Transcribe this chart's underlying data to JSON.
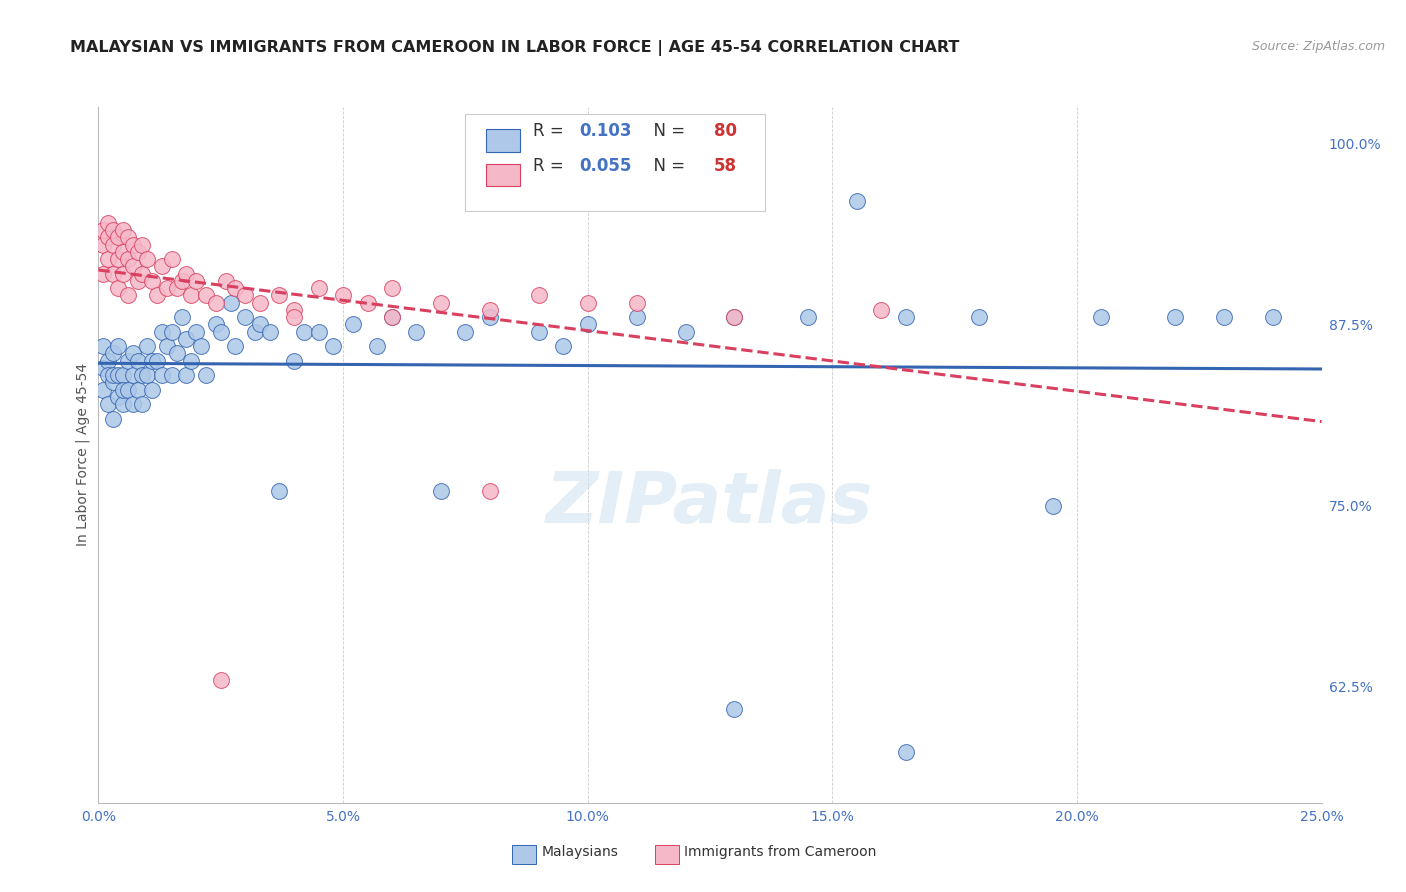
{
  "title": "MALAYSIAN VS IMMIGRANTS FROM CAMEROON IN LABOR FORCE | AGE 45-54 CORRELATION CHART",
  "source": "Source: ZipAtlas.com",
  "ylabel": "In Labor Force | Age 45-54",
  "r_malaysian": 0.103,
  "n_malaysian": 80,
  "r_cameroon": 0.055,
  "n_cameroon": 58,
  "color_malaysian": "#adc8e8",
  "color_cameroon": "#f5b8c8",
  "line_color_malaysian": "#3565b0",
  "line_color_cameroon": "#d94060",
  "background_color": "#ffffff",
  "grid_color": "#c8c8c8",
  "xlim": [
    0.0,
    0.25
  ],
  "ylim": [
    0.545,
    1.025
  ],
  "ytick_labels": [
    "62.5%",
    "75.0%",
    "87.5%",
    "100.0%"
  ],
  "ytick_values": [
    0.625,
    0.75,
    0.875,
    1.0
  ],
  "xtick_labels": [
    "0.0%",
    "5.0%",
    "10.0%",
    "15.0%",
    "20.0%",
    "25.0%"
  ],
  "xtick_values": [
    0.0,
    0.05,
    0.1,
    0.15,
    0.2,
    0.25
  ],
  "watermark": "ZIPatlas",
  "malaysian_x": [
    0.001,
    0.001,
    0.001,
    0.002,
    0.002,
    0.002,
    0.003,
    0.003,
    0.003,
    0.003,
    0.004,
    0.004,
    0.004,
    0.005,
    0.005,
    0.005,
    0.006,
    0.006,
    0.007,
    0.007,
    0.007,
    0.008,
    0.008,
    0.009,
    0.009,
    0.01,
    0.01,
    0.011,
    0.011,
    0.012,
    0.013,
    0.013,
    0.014,
    0.015,
    0.015,
    0.016,
    0.017,
    0.018,
    0.018,
    0.019,
    0.02,
    0.021,
    0.022,
    0.024,
    0.025,
    0.027,
    0.028,
    0.03,
    0.032,
    0.033,
    0.035,
    0.037,
    0.04,
    0.042,
    0.045,
    0.048,
    0.052,
    0.057,
    0.06,
    0.065,
    0.07,
    0.075,
    0.08,
    0.09,
    0.095,
    0.1,
    0.11,
    0.12,
    0.13,
    0.145,
    0.155,
    0.165,
    0.18,
    0.195,
    0.205,
    0.22,
    0.23,
    0.24,
    0.165,
    0.13
  ],
  "malaysian_y": [
    0.845,
    0.86,
    0.83,
    0.85,
    0.84,
    0.82,
    0.855,
    0.835,
    0.81,
    0.84,
    0.84,
    0.825,
    0.86,
    0.84,
    0.82,
    0.83,
    0.85,
    0.83,
    0.855,
    0.82,
    0.84,
    0.85,
    0.83,
    0.84,
    0.82,
    0.84,
    0.86,
    0.85,
    0.83,
    0.85,
    0.87,
    0.84,
    0.86,
    0.87,
    0.84,
    0.855,
    0.88,
    0.865,
    0.84,
    0.85,
    0.87,
    0.86,
    0.84,
    0.875,
    0.87,
    0.89,
    0.86,
    0.88,
    0.87,
    0.875,
    0.87,
    0.76,
    0.85,
    0.87,
    0.87,
    0.86,
    0.875,
    0.86,
    0.88,
    0.87,
    0.76,
    0.87,
    0.88,
    0.87,
    0.86,
    0.875,
    0.88,
    0.87,
    0.88,
    0.88,
    0.96,
    0.88,
    0.88,
    0.75,
    0.88,
    0.88,
    0.88,
    0.88,
    0.58,
    0.61
  ],
  "cameroon_x": [
    0.001,
    0.001,
    0.001,
    0.002,
    0.002,
    0.002,
    0.003,
    0.003,
    0.003,
    0.004,
    0.004,
    0.004,
    0.005,
    0.005,
    0.005,
    0.006,
    0.006,
    0.006,
    0.007,
    0.007,
    0.008,
    0.008,
    0.009,
    0.009,
    0.01,
    0.011,
    0.012,
    0.013,
    0.014,
    0.015,
    0.016,
    0.017,
    0.018,
    0.019,
    0.02,
    0.022,
    0.024,
    0.026,
    0.028,
    0.03,
    0.033,
    0.037,
    0.04,
    0.045,
    0.05,
    0.055,
    0.06,
    0.07,
    0.08,
    0.09,
    0.1,
    0.11,
    0.13,
    0.16,
    0.08,
    0.06,
    0.04,
    0.025
  ],
  "cameroon_y": [
    0.93,
    0.94,
    0.91,
    0.935,
    0.92,
    0.945,
    0.93,
    0.91,
    0.94,
    0.92,
    0.935,
    0.9,
    0.925,
    0.94,
    0.91,
    0.92,
    0.935,
    0.895,
    0.915,
    0.93,
    0.905,
    0.925,
    0.91,
    0.93,
    0.92,
    0.905,
    0.895,
    0.915,
    0.9,
    0.92,
    0.9,
    0.905,
    0.91,
    0.895,
    0.905,
    0.895,
    0.89,
    0.905,
    0.9,
    0.895,
    0.89,
    0.895,
    0.885,
    0.9,
    0.895,
    0.89,
    0.9,
    0.89,
    0.885,
    0.895,
    0.89,
    0.89,
    0.88,
    0.885,
    0.76,
    0.88,
    0.88,
    0.63
  ],
  "title_fontsize": 11.5,
  "axis_label_fontsize": 10,
  "tick_fontsize": 10,
  "watermark_fontsize": 52,
  "watermark_color": "#cce0f0",
  "watermark_alpha": 0.55
}
